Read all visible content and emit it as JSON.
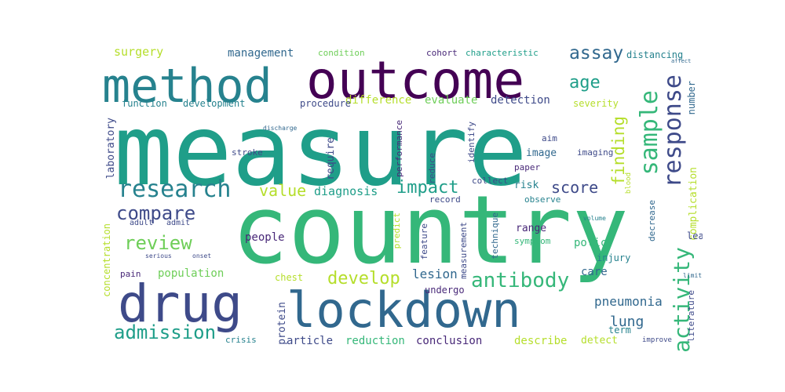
{
  "palette": [
    "#440154",
    "#482878",
    "#3e4a89",
    "#31688e",
    "#26828e",
    "#1f9e89",
    "#35b779",
    "#6ece58",
    "#b5de2b",
    "#fde725"
  ],
  "words": [
    {
      "text": "measure",
      "weight": 1.0,
      "color": "#1f9e89",
      "rotate": false
    },
    {
      "text": "country",
      "weight": 0.98,
      "color": "#35b779",
      "rotate": false
    },
    {
      "text": "outcome",
      "weight": 0.7,
      "color": "#440154",
      "rotate": false
    },
    {
      "text": "method",
      "weight": 0.62,
      "color": "#26828e",
      "rotate": false
    },
    {
      "text": "lockdown",
      "weight": 0.62,
      "color": "#31688e",
      "rotate": false
    },
    {
      "text": "drug",
      "weight": 0.66,
      "color": "#3e4a89",
      "rotate": false
    },
    {
      "text": "research",
      "weight": 0.25,
      "color": "#26828e",
      "rotate": false
    },
    {
      "text": "response",
      "weight": 0.25,
      "color": "#3e4a89",
      "rotate": true
    },
    {
      "text": "sample",
      "weight": 0.25,
      "color": "#35b779",
      "rotate": true
    },
    {
      "text": "activity",
      "weight": 0.24,
      "color": "#35b779",
      "rotate": true
    },
    {
      "text": "antibody",
      "weight": 0.22,
      "color": "#35b779",
      "rotate": false
    },
    {
      "text": "compare",
      "weight": 0.22,
      "color": "#3e4a89",
      "rotate": false
    },
    {
      "text": "review",
      "weight": 0.22,
      "color": "#6ece58",
      "rotate": false
    },
    {
      "text": "admission",
      "weight": 0.22,
      "color": "#1f9e89",
      "rotate": false
    },
    {
      "text": "develop",
      "weight": 0.2,
      "color": "#b5de2b",
      "rotate": false
    },
    {
      "text": "impact",
      "weight": 0.2,
      "color": "#1f9e89",
      "rotate": false
    },
    {
      "text": "assay",
      "weight": 0.2,
      "color": "#31688e",
      "rotate": false
    },
    {
      "text": "age",
      "weight": 0.2,
      "color": "#1f9e89",
      "rotate": false
    },
    {
      "text": "score",
      "weight": 0.18,
      "color": "#3e4a89",
      "rotate": false
    },
    {
      "text": "value",
      "weight": 0.18,
      "color": "#b5de2b",
      "rotate": false
    },
    {
      "text": "finding",
      "weight": 0.18,
      "color": "#b5de2b",
      "rotate": true
    },
    {
      "text": "lung",
      "weight": 0.16,
      "color": "#31688e",
      "rotate": false
    },
    {
      "text": "pneumonia",
      "weight": 0.14,
      "color": "#31688e",
      "rotate": false
    },
    {
      "text": "lesion",
      "weight": 0.14,
      "color": "#31688e",
      "rotate": false
    },
    {
      "text": "diagnosis",
      "weight": 0.13,
      "color": "#1f9e89",
      "rotate": false
    },
    {
      "text": "surgery",
      "weight": 0.13,
      "color": "#b5de2b",
      "rotate": false
    },
    {
      "text": "management",
      "weight": 0.12,
      "color": "#31688e",
      "rotate": false
    },
    {
      "text": "difference",
      "weight": 0.12,
      "color": "#b5de2b",
      "rotate": false
    },
    {
      "text": "evaluate",
      "weight": 0.12,
      "color": "#6ece58",
      "rotate": false
    },
    {
      "text": "detection",
      "weight": 0.12,
      "color": "#3e4a89",
      "rotate": false
    },
    {
      "text": "concentration",
      "weight": 0.12,
      "color": "#b5de2b",
      "rotate": true
    },
    {
      "text": "population",
      "weight": 0.12,
      "color": "#6ece58",
      "rotate": false
    },
    {
      "text": "people",
      "weight": 0.12,
      "color": "#482878",
      "rotate": false
    },
    {
      "text": "care",
      "weight": 0.12,
      "color": "#31688e",
      "rotate": false
    },
    {
      "text": "policy",
      "weight": 0.12,
      "color": "#35b779",
      "rotate": false
    },
    {
      "text": "term",
      "weight": 0.11,
      "color": "#26828e",
      "rotate": false
    },
    {
      "text": "reduction",
      "weight": 0.12,
      "color": "#35b779",
      "rotate": false
    },
    {
      "text": "conclusion",
      "weight": 0.12,
      "color": "#482878",
      "rotate": false
    },
    {
      "text": "describe",
      "weight": 0.12,
      "color": "#b5de2b",
      "rotate": false
    },
    {
      "text": "article",
      "weight": 0.12,
      "color": "#3e4a89",
      "rotate": false
    },
    {
      "text": "detect",
      "weight": 0.11,
      "color": "#b5de2b",
      "rotate": false
    },
    {
      "text": "laboratory",
      "weight": 0.11,
      "color": "#3e4a89",
      "rotate": true
    },
    {
      "text": "protein",
      "weight": 0.11,
      "color": "#3e4a89",
      "rotate": true
    },
    {
      "text": "require",
      "weight": 0.11,
      "color": "#3e4a89",
      "rotate": true
    },
    {
      "text": "image",
      "weight": 0.11,
      "color": "#31688e",
      "rotate": false
    },
    {
      "text": "range",
      "weight": 0.11,
      "color": "#482878",
      "rotate": false
    },
    {
      "text": "risk",
      "weight": 0.11,
      "color": "#26828e",
      "rotate": false
    },
    {
      "text": "complication",
      "weight": 0.1,
      "color": "#b5de2b",
      "rotate": true
    },
    {
      "text": "number",
      "weight": 0.1,
      "color": "#31688e",
      "rotate": true
    },
    {
      "text": "injury",
      "weight": 0.1,
      "color": "#26828e",
      "rotate": false
    },
    {
      "text": "procedure",
      "weight": 0.1,
      "color": "#3e4a89",
      "rotate": false
    },
    {
      "text": "development",
      "weight": 0.1,
      "color": "#26828e",
      "rotate": false
    },
    {
      "text": "function",
      "weight": 0.09,
      "color": "#26828e",
      "rotate": false
    },
    {
      "text": "condition",
      "weight": 0.09,
      "color": "#6ece58",
      "rotate": false
    },
    {
      "text": "cohort",
      "weight": 0.09,
      "color": "#482878",
      "rotate": false
    },
    {
      "text": "characteristic",
      "weight": 0.09,
      "color": "#1f9e89",
      "rotate": false
    },
    {
      "text": "distancing",
      "weight": 0.09,
      "color": "#26828e",
      "rotate": false
    },
    {
      "text": "severity",
      "weight": 0.08,
      "color": "#b5de2b",
      "rotate": false
    },
    {
      "text": "stroke",
      "weight": 0.08,
      "color": "#3e4a89",
      "rotate": false
    },
    {
      "text": "aim",
      "weight": 0.08,
      "color": "#3e4a89",
      "rotate": false
    },
    {
      "text": "imaging",
      "weight": 0.08,
      "color": "#3e4a89",
      "rotate": false
    },
    {
      "text": "paper",
      "weight": 0.08,
      "color": "#482878",
      "rotate": false
    },
    {
      "text": "collect",
      "weight": 0.08,
      "color": "#3e4a89",
      "rotate": false
    },
    {
      "text": "record",
      "weight": 0.08,
      "color": "#3e4a89",
      "rotate": false
    },
    {
      "text": "observe",
      "weight": 0.08,
      "color": "#26828e",
      "rotate": false
    },
    {
      "text": "identify",
      "weight": 0.08,
      "color": "#3e4a89",
      "rotate": true
    },
    {
      "text": "performance",
      "weight": 0.08,
      "color": "#482878",
      "rotate": true
    },
    {
      "text": "reduce",
      "weight": 0.08,
      "color": "#3e4a89",
      "rotate": true
    },
    {
      "text": "predict",
      "weight": 0.08,
      "color": "#b5de2b",
      "rotate": true
    },
    {
      "text": "feature",
      "weight": 0.08,
      "color": "#3e4a89",
      "rotate": true
    },
    {
      "text": "technique",
      "weight": 0.08,
      "color": "#31688e",
      "rotate": true
    },
    {
      "text": "measurement",
      "weight": 0.08,
      "color": "#3e4a89",
      "rotate": true
    },
    {
      "text": "symptom",
      "weight": 0.08,
      "color": "#35b779",
      "rotate": false
    },
    {
      "text": "undergo",
      "weight": 0.09,
      "color": "#482878",
      "rotate": false
    },
    {
      "text": "chest",
      "weight": 0.08,
      "color": "#b5de2b",
      "rotate": false
    },
    {
      "text": "pain",
      "weight": 0.08,
      "color": "#482878",
      "rotate": false
    },
    {
      "text": "adult",
      "weight": 0.07,
      "color": "#3e4a89",
      "rotate": false
    },
    {
      "text": "admit",
      "weight": 0.07,
      "color": "#3e4a89",
      "rotate": false
    },
    {
      "text": "crisis",
      "weight": 0.07,
      "color": "#26828e",
      "rotate": false
    },
    {
      "text": "literature",
      "weight": 0.08,
      "color": "#3e4a89",
      "rotate": true
    },
    {
      "text": "decrease",
      "weight": 0.08,
      "color": "#31688e",
      "rotate": true
    },
    {
      "text": "lead",
      "weight": 0.08,
      "color": "#3e4a89",
      "rotate": false
    },
    {
      "text": "blood",
      "weight": 0.07,
      "color": "#b5de2b",
      "rotate": true
    },
    {
      "text": "improve",
      "weight": 0.06,
      "color": "#3e4a89",
      "rotate": false
    },
    {
      "text": "discharge",
      "weight": 0.06,
      "color": "#31688e",
      "rotate": false
    },
    {
      "text": "volume",
      "weight": 0.05,
      "color": "#26828e",
      "rotate": false
    },
    {
      "text": "serious",
      "weight": 0.05,
      "color": "#3e4a89",
      "rotate": false
    },
    {
      "text": "onset",
      "weight": 0.05,
      "color": "#3e4a89",
      "rotate": false
    },
    {
      "text": "limit",
      "weight": 0.05,
      "color": "#31688e",
      "rotate": false
    },
    {
      "text": "affect",
      "weight": 0.05,
      "color": "#31688e",
      "rotate": false
    }
  ]
}
